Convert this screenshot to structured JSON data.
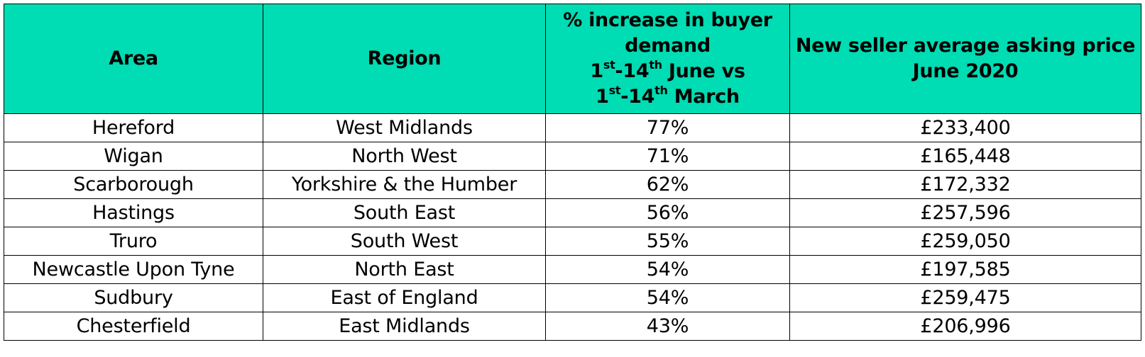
{
  "table": {
    "headers": {
      "area": "Area",
      "region": "Region",
      "pct_line1": "% increase in buyer",
      "pct_line2": "demand",
      "pct_line3_a": "1",
      "pct_line3_sup1": "st",
      "pct_line3_b": "-14",
      "pct_line3_sup2": "th",
      "pct_line3_c": " June vs",
      "pct_line4_a": "1",
      "pct_line4_sup1": "st",
      "pct_line4_b": "-14",
      "pct_line4_sup2": "th",
      "pct_line4_c": " March",
      "price_line1": "New seller average asking price",
      "price_line2": "June 2020"
    },
    "rows": [
      {
        "area": "Hereford",
        "region": "West Midlands",
        "pct": "77%",
        "price": "£233,400"
      },
      {
        "area": "Wigan",
        "region": "North West",
        "pct": "71%",
        "price": "£165,448"
      },
      {
        "area": "Scarborough",
        "region": "Yorkshire & the Humber",
        "pct": "62%",
        "price": "£172,332"
      },
      {
        "area": "Hastings",
        "region": "South East",
        "pct": "56%",
        "price": "£257,596"
      },
      {
        "area": "Truro",
        "region": "South West",
        "pct": "55%",
        "price": "£259,050"
      },
      {
        "area": "Newcastle Upon Tyne",
        "region": "North East",
        "pct": "54%",
        "price": "£197,585"
      },
      {
        "area": "Sudbury",
        "region": "East of England",
        "pct": "54%",
        "price": "£259,475"
      },
      {
        "area": "Chesterfield",
        "region": "East Midlands",
        "pct": "43%",
        "price": "£206,996"
      }
    ]
  },
  "colors": {
    "header_background": "#00dcb3",
    "border": "#000000",
    "text": "#000000"
  }
}
